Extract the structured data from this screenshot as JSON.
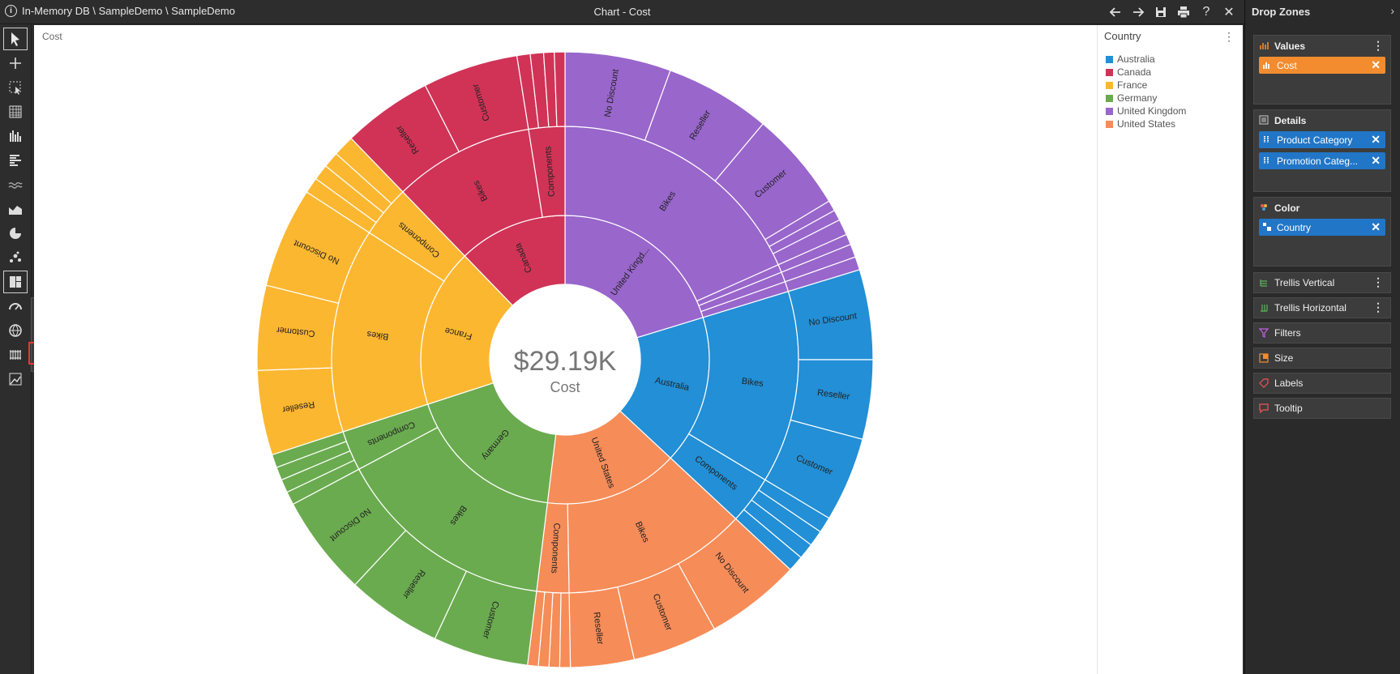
{
  "titlebar": {
    "path": "In-Memory DB \\ SampleDemo \\ SampleDemo",
    "title": "Chart - Cost",
    "icons": [
      "back-arrow-icon",
      "forward-arrow-icon",
      "save-icon",
      "print-icon",
      "help-icon",
      "close-icon"
    ],
    "help_label": "?",
    "close_label": "✕"
  },
  "chart": {
    "title": "Cost",
    "center_value": "$29.19K",
    "center_label": "Cost"
  },
  "legend": {
    "title": "Country",
    "items": [
      {
        "label": "Australia",
        "color": "#228fd6"
      },
      {
        "label": "Canada",
        "color": "#d03356"
      },
      {
        "label": "France",
        "color": "#fcb731"
      },
      {
        "label": "Germany",
        "color": "#6aab4f"
      },
      {
        "label": "United Kingdom",
        "color": "#9966cc"
      },
      {
        "label": "United States",
        "color": "#f68c58"
      }
    ]
  },
  "chart_data": {
    "type": "sunburst",
    "total_label": "$29.19K",
    "levels": [
      "Country",
      "Product Category",
      "Promotion Category"
    ],
    "nodes": [
      {
        "country": "United Kingdom",
        "label": "United Kingd...",
        "color": "#9966cc",
        "a0": 0,
        "a1": 73,
        "children": [
          {
            "label": "Bikes",
            "a0": 0,
            "a1": 66,
            "children": [
              {
                "label": "No Discount",
                "a0": 0,
                "a1": 20
              },
              {
                "label": "Reseller",
                "a0": 20,
                "a1": 40
              },
              {
                "label": "Customer",
                "a0": 40,
                "a1": 59
              },
              {
                "label": "",
                "a0": 59,
                "a1": 61
              },
              {
                "label": "",
                "a0": 61,
                "a1": 63
              },
              {
                "label": "",
                "a0": 63,
                "a1": 66
              }
            ]
          },
          {
            "label": "",
            "a0": 66,
            "a1": 68,
            "children": [
              {
                "label": "",
                "a0": 66,
                "a1": 68
              }
            ]
          },
          {
            "label": "",
            "a0": 68,
            "a1": 70.5,
            "children": [
              {
                "label": "",
                "a0": 68,
                "a1": 70.5
              }
            ]
          },
          {
            "label": "",
            "a0": 70.5,
            "a1": 73,
            "children": [
              {
                "label": "",
                "a0": 70.5,
                "a1": 73
              }
            ]
          }
        ]
      },
      {
        "country": "Australia",
        "label": "Australia",
        "color": "#228fd6",
        "a0": 73,
        "a1": 133,
        "children": [
          {
            "label": "Bikes",
            "a0": 73,
            "a1": 121,
            "children": [
              {
                "label": "No Discount",
                "a0": 73,
                "a1": 90
              },
              {
                "label": "Reseller",
                "a0": 90,
                "a1": 105
              },
              {
                "label": "Customer",
                "a0": 105,
                "a1": 121
              }
            ]
          },
          {
            "label": "Components",
            "a0": 121,
            "a1": 133,
            "children": [
              {
                "label": "",
                "a0": 121,
                "a1": 124
              },
              {
                "label": "",
                "a0": 124,
                "a1": 127
              },
              {
                "label": "",
                "a0": 127,
                "a1": 130
              },
              {
                "label": "",
                "a0": 130,
                "a1": 133
              }
            ]
          }
        ]
      },
      {
        "country": "United States",
        "label": "United States",
        "color": "#f68c58",
        "a0": 133,
        "a1": 187,
        "children": [
          {
            "label": "Bikes",
            "a0": 133,
            "a1": 179,
            "children": [
              {
                "label": "No Discount",
                "a0": 133,
                "a1": 151
              },
              {
                "label": "Customer",
                "a0": 151,
                "a1": 167
              },
              {
                "label": "Reseller",
                "a0": 167,
                "a1": 179
              }
            ]
          },
          {
            "label": "Components",
            "a0": 179,
            "a1": 187,
            "children": [
              {
                "label": "",
                "a0": 179,
                "a1": 181
              },
              {
                "label": "",
                "a0": 181,
                "a1": 183
              },
              {
                "label": "",
                "a0": 183,
                "a1": 185
              },
              {
                "label": "",
                "a0": 185,
                "a1": 187
              }
            ]
          }
        ]
      },
      {
        "country": "Germany",
        "label": "Germany",
        "color": "#6aab4f",
        "a0": 187,
        "a1": 252,
        "children": [
          {
            "label": "Bikes",
            "a0": 187,
            "a1": 242,
            "children": [
              {
                "label": "Customer",
                "a0": 187,
                "a1": 205
              },
              {
                "label": "Reseller",
                "a0": 205,
                "a1": 223
              },
              {
                "label": "No Discount",
                "a0": 223,
                "a1": 242
              }
            ]
          },
          {
            "label": "Components",
            "a0": 242,
            "a1": 252,
            "children": [
              {
                "label": "",
                "a0": 242,
                "a1": 244.5
              },
              {
                "label": "",
                "a0": 244.5,
                "a1": 247
              },
              {
                "label": "",
                "a0": 247,
                "a1": 249.5
              },
              {
                "label": "",
                "a0": 249.5,
                "a1": 252
              }
            ]
          }
        ]
      },
      {
        "country": "France",
        "label": "France",
        "color": "#fcb731",
        "a0": 252,
        "a1": 316,
        "children": [
          {
            "label": "Bikes",
            "a0": 252,
            "a1": 303,
            "children": [
              {
                "label": "Reseller",
                "a0": 252,
                "a1": 268
              },
              {
                "label": "Customer",
                "a0": 268,
                "a1": 284
              },
              {
                "label": "No Discount",
                "a0": 284,
                "a1": 303
              }
            ]
          },
          {
            "label": "Components",
            "a0": 303,
            "a1": 316,
            "children": [
              {
                "label": "",
                "a0": 303,
                "a1": 306
              },
              {
                "label": "",
                "a0": 306,
                "a1": 309
              },
              {
                "label": "",
                "a0": 309,
                "a1": 312
              },
              {
                "label": "",
                "a0": 312,
                "a1": 316
              }
            ]
          }
        ]
      },
      {
        "country": "Canada",
        "label": "Canada",
        "color": "#d03356",
        "a0": 316,
        "a1": 360,
        "children": [
          {
            "label": "Bikes",
            "a0": 316,
            "a1": 351,
            "children": [
              {
                "label": "Reseller",
                "a0": 316,
                "a1": 333
              },
              {
                "label": "Customer",
                "a0": 333,
                "a1": 351
              }
            ]
          },
          {
            "label": "Components",
            "a0": 351,
            "a1": 360,
            "children": [
              {
                "label": "",
                "a0": 351,
                "a1": 353.5
              },
              {
                "label": "",
                "a0": 353.5,
                "a1": 356
              },
              {
                "label": "",
                "a0": 356,
                "a1": 358
              },
              {
                "label": "",
                "a0": 358,
                "a1": 360
              }
            ]
          }
        ]
      }
    ]
  },
  "toolbar": {
    "tools": [
      "pointer-icon",
      "crosshair-icon",
      "select-region-icon",
      "table-icon",
      "column-chart-icon",
      "bar-chart-icon",
      "line-chart-icon",
      "area-chart-icon",
      "pie-chart-icon",
      "scatter-icon",
      "hierarchy-chart-icon",
      "gauge-icon",
      "map-icon",
      "grid-icon",
      "analytics-icon"
    ],
    "flyout": [
      "treemap-icon",
      "stacked-treemap-icon",
      "bubble-pack-icon",
      "sunburst-cluster-icon",
      "flow-icon",
      "cloud-icon",
      "sunburst-icon"
    ]
  },
  "dropzones": {
    "header": "Drop Zones",
    "collapse": "›",
    "values": {
      "title": "Values",
      "pills": [
        {
          "label": "Cost"
        }
      ]
    },
    "details": {
      "title": "Details",
      "pills": [
        {
          "label": "Product Category"
        },
        {
          "label": "Promotion Categ..."
        }
      ]
    },
    "color": {
      "title": "Color",
      "pills": [
        {
          "label": "Country"
        }
      ]
    },
    "rows": [
      {
        "title": "Trellis Vertical",
        "menu": true
      },
      {
        "title": "Trellis Horizontal",
        "menu": true
      },
      {
        "title": "Filters",
        "menu": false
      },
      {
        "title": "Size",
        "menu": false
      },
      {
        "title": "Labels",
        "menu": false
      },
      {
        "title": "Tooltip",
        "menu": false
      }
    ],
    "colors": {
      "accent_orange": "#f28c2f",
      "accent_blue": "#2176c7"
    }
  }
}
